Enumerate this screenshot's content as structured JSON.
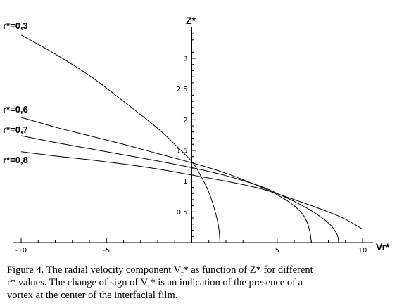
{
  "chart_data": {
    "type": "line",
    "xlabel": "Vr*",
    "ylabel": "Z*",
    "xlim": [
      -10,
      10.5
    ],
    "ylim": [
      0,
      3.5
    ],
    "x_ticks": [
      -10,
      -5,
      0,
      5,
      10
    ],
    "x_tick_labels": [
      "-10",
      "-5",
      "",
      "5",
      "10"
    ],
    "y_ticks": [
      0.5,
      1,
      1.5,
      2,
      2.5,
      3
    ],
    "y_tick_labels": [
      "0.5",
      "1",
      "1.5",
      "2",
      "2.5",
      "3"
    ],
    "grid": false,
    "series": [
      {
        "name": "r*=0,3",
        "points": [
          [
            -10,
            3.38
          ],
          [
            -8,
            3.07
          ],
          [
            -6,
            2.72
          ],
          [
            -4,
            2.3
          ],
          [
            -2,
            1.86
          ],
          [
            -1,
            1.6
          ],
          [
            0,
            1.32
          ],
          [
            0.5,
            1.1
          ],
          [
            1,
            0.82
          ],
          [
            1.3,
            0.57
          ],
          [
            1.5,
            0.36
          ],
          [
            1.6,
            0.2
          ],
          [
            1.65,
            0
          ]
        ]
      },
      {
        "name": "r*=0,6",
        "points": [
          [
            -10,
            2.04
          ],
          [
            -8,
            1.88
          ],
          [
            -6,
            1.74
          ],
          [
            -4,
            1.6
          ],
          [
            -2,
            1.45
          ],
          [
            0,
            1.3
          ],
          [
            2,
            1.13
          ],
          [
            4,
            0.91
          ],
          [
            5,
            0.78
          ],
          [
            6,
            0.6
          ],
          [
            6.6,
            0.42
          ],
          [
            6.9,
            0.2
          ],
          [
            7.0,
            0
          ]
        ]
      },
      {
        "name": "r*=0,7",
        "points": [
          [
            -10,
            1.74
          ],
          [
            -8,
            1.63
          ],
          [
            -6,
            1.53
          ],
          [
            -4,
            1.43
          ],
          [
            -2,
            1.33
          ],
          [
            0,
            1.22
          ],
          [
            2,
            1.09
          ],
          [
            4,
            0.92
          ],
          [
            5,
            0.8
          ],
          [
            6,
            0.67
          ],
          [
            7,
            0.52
          ],
          [
            8,
            0.32
          ],
          [
            8.5,
            0.14
          ],
          [
            8.6,
            0
          ]
        ]
      },
      {
        "name": "r*=0,8",
        "points": [
          [
            -10,
            1.48
          ],
          [
            -8,
            1.41
          ],
          [
            -6,
            1.35
          ],
          [
            -4,
            1.28
          ],
          [
            -2,
            1.2
          ],
          [
            0,
            1.1
          ],
          [
            2,
            1.0
          ],
          [
            4,
            0.88
          ],
          [
            6,
            0.7
          ],
          [
            8,
            0.5
          ],
          [
            9,
            0.38
          ],
          [
            10,
            0.22
          ]
        ]
      }
    ],
    "annotations": [
      "r*=0,3",
      "r*=0,6",
      "r*=0,7",
      "r*=0,8"
    ]
  },
  "caption": {
    "line1_pre": "Figure 4. The radial velocity component V",
    "line1_sub": "r",
    "line1_post": "* as function of Z* for different",
    "line2_pre": "r* values. The change of sign of V",
    "line2_sub": "r",
    "line2_post": "* is an indication of the presence of a",
    "line3": "vortex at the center of the interfacial film."
  }
}
